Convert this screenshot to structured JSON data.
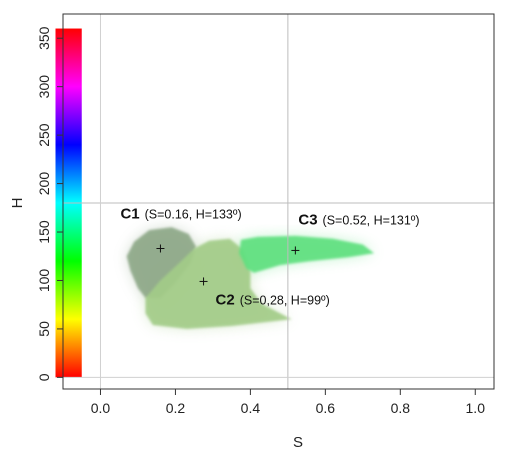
{
  "chart_data": {
    "type": "scatter",
    "xlabel": "S",
    "ylabel": "H",
    "xlim": [
      -0.1,
      1.05
    ],
    "ylim": [
      -12,
      375
    ],
    "x_ticks": [
      "0.0",
      "0.2",
      "0.4",
      "0.6",
      "0.8",
      "1.0"
    ],
    "y_ticks": [
      "0",
      "50",
      "100",
      "150",
      "200",
      "250",
      "300",
      "350"
    ],
    "reference_lines": {
      "x": 0.5,
      "y": 180
    },
    "grid": false,
    "hue_colorbar": {
      "range": [
        0,
        360
      ],
      "x_range": [
        -0.12,
        -0.05
      ]
    },
    "clusters": [
      {
        "id": "C1",
        "detail": "(S=0.16, H=133º)",
        "centroid": {
          "x": 0.16,
          "y": 133
        },
        "color": "#8ea888",
        "region": [
          {
            "x": 0.08,
            "y": 110
          },
          {
            "x": 0.07,
            "y": 125
          },
          {
            "x": 0.09,
            "y": 140
          },
          {
            "x": 0.13,
            "y": 152
          },
          {
            "x": 0.19,
            "y": 155
          },
          {
            "x": 0.235,
            "y": 148
          },
          {
            "x": 0.255,
            "y": 135
          },
          {
            "x": 0.24,
            "y": 118
          },
          {
            "x": 0.2,
            "y": 98
          },
          {
            "x": 0.16,
            "y": 82
          },
          {
            "x": 0.12,
            "y": 82
          },
          {
            "x": 0.1,
            "y": 92
          }
        ]
      },
      {
        "id": "C2",
        "detail": "(S=0,28, H=99º)",
        "centroid": {
          "x": 0.275,
          "y": 99
        },
        "color": "#a3cc88",
        "region": [
          {
            "x": 0.12,
            "y": 82
          },
          {
            "x": 0.16,
            "y": 100
          },
          {
            "x": 0.21,
            "y": 118
          },
          {
            "x": 0.25,
            "y": 133
          },
          {
            "x": 0.29,
            "y": 141
          },
          {
            "x": 0.345,
            "y": 143
          },
          {
            "x": 0.38,
            "y": 132
          },
          {
            "x": 0.4,
            "y": 110
          },
          {
            "x": 0.4,
            "y": 92
          },
          {
            "x": 0.43,
            "y": 76
          },
          {
            "x": 0.51,
            "y": 60
          },
          {
            "x": 0.44,
            "y": 57
          },
          {
            "x": 0.35,
            "y": 53
          },
          {
            "x": 0.23,
            "y": 50
          },
          {
            "x": 0.14,
            "y": 54
          },
          {
            "x": 0.12,
            "y": 66
          }
        ]
      },
      {
        "id": "C3",
        "detail": "(S=0.52, H=131º)",
        "centroid": {
          "x": 0.52,
          "y": 131
        },
        "color": "#5fe07f",
        "region": [
          {
            "x": 0.37,
            "y": 128
          },
          {
            "x": 0.375,
            "y": 142
          },
          {
            "x": 0.42,
            "y": 145
          },
          {
            "x": 0.52,
            "y": 146
          },
          {
            "x": 0.62,
            "y": 143
          },
          {
            "x": 0.7,
            "y": 137
          },
          {
            "x": 0.73,
            "y": 128
          },
          {
            "x": 0.66,
            "y": 124
          },
          {
            "x": 0.56,
            "y": 120
          },
          {
            "x": 0.48,
            "y": 116
          },
          {
            "x": 0.41,
            "y": 108
          },
          {
            "x": 0.39,
            "y": 112
          }
        ]
      }
    ]
  }
}
